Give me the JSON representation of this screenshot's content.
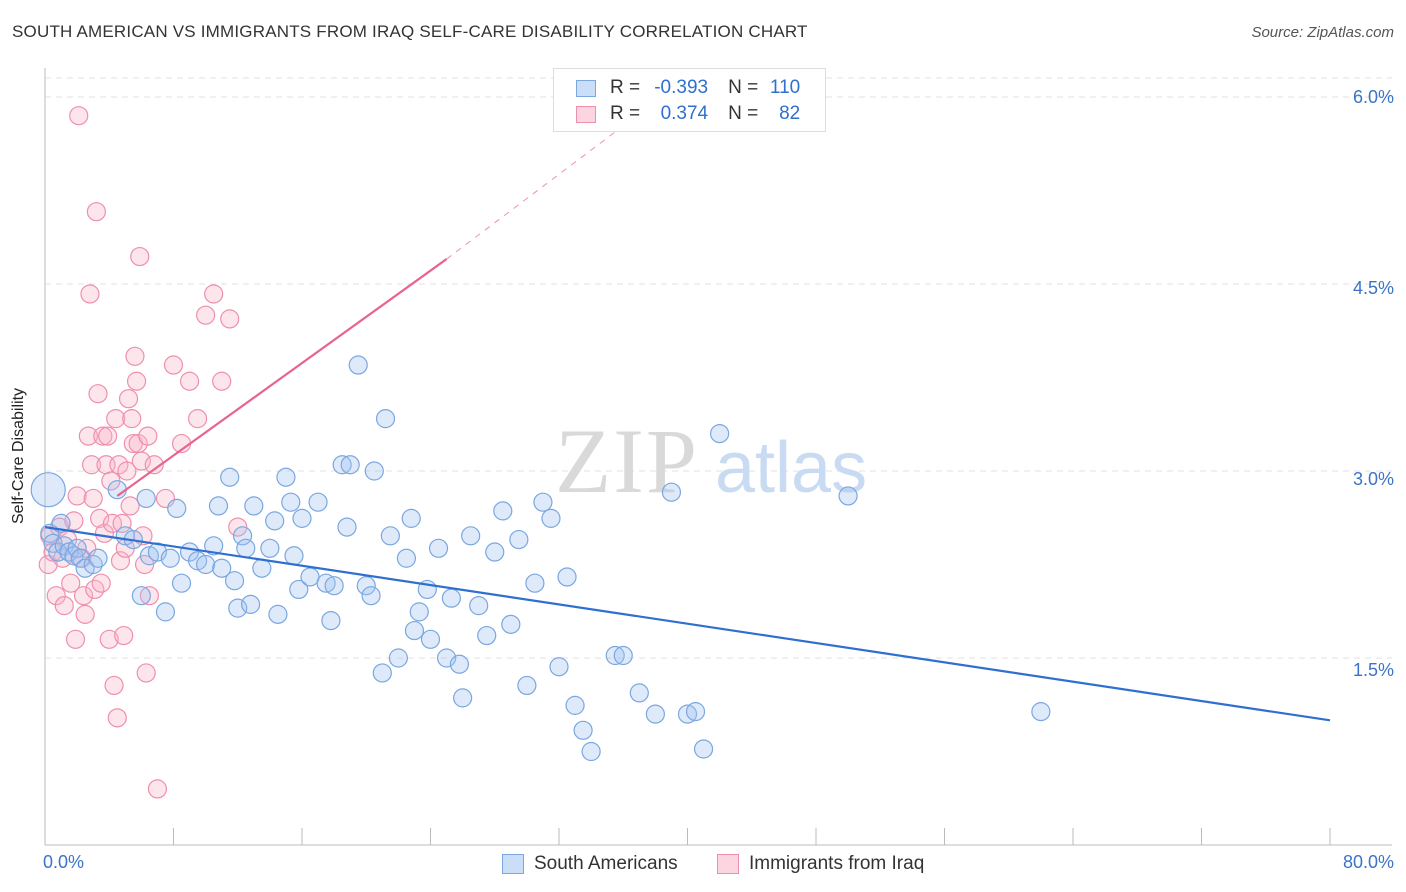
{
  "title": "SOUTH AMERICAN VS IMMIGRANTS FROM IRAQ SELF-CARE DISABILITY CORRELATION CHART",
  "source": "Source: ZipAtlas.com",
  "watermark": {
    "zip": "ZIP",
    "atlas": "atlas"
  },
  "legend": {
    "rows": [
      {
        "r_label": "R =",
        "r_value": "-0.393",
        "n_label": "N =",
        "n_value": "110"
      },
      {
        "r_label": "R =",
        "r_value": "0.374",
        "n_label": "N =",
        "n_value": "82"
      }
    ]
  },
  "colors": {
    "blue": "#7aa7e0",
    "blue_fill": "rgba(160,195,240,0.35)",
    "blue_line": "#2f6fd0",
    "pink": "#ef8fae",
    "pink_fill": "rgba(248,180,200,0.35)",
    "pink_line": "#e8648f",
    "grid": "#e2e2e2",
    "tick_text": "#3b73c9"
  },
  "chart_data": {
    "type": "scatter",
    "title": "SOUTH AMERICAN VS IMMIGRANTS FROM IRAQ SELF-CARE DISABILITY CORRELATION CHART",
    "xlabel": "",
    "ylabel": "Self-Care Disability",
    "xlim": [
      0,
      80
    ],
    "ylim": [
      0,
      6.3
    ],
    "x_tick_labels": [
      "0.0%",
      "80.0%"
    ],
    "y_ticks": [
      1.5,
      3.0,
      4.5,
      6.0
    ],
    "y_tick_labels": [
      "1.5%",
      "3.0%",
      "4.5%",
      "6.0%"
    ],
    "grid": true,
    "legend_position": "bottom",
    "series": [
      {
        "name": "South Americans",
        "color": "#7aa7e0",
        "trend": {
          "x": [
            0,
            80
          ],
          "y": [
            2.55,
            1.0
          ]
        },
        "points": [
          [
            0.2,
            2.85
          ],
          [
            0.3,
            2.5
          ],
          [
            0.5,
            2.42
          ],
          [
            0.8,
            2.35
          ],
          [
            1,
            2.58
          ],
          [
            1.2,
            2.4
          ],
          [
            1.5,
            2.35
          ],
          [
            1.8,
            2.32
          ],
          [
            2,
            2.38
          ],
          [
            2.2,
            2.3
          ],
          [
            2.5,
            2.22
          ],
          [
            3,
            2.25
          ],
          [
            3.3,
            2.3
          ],
          [
            4.5,
            2.85
          ],
          [
            5,
            2.48
          ],
          [
            5.5,
            2.45
          ],
          [
            6,
            2.0
          ],
          [
            6.3,
            2.78
          ],
          [
            6.5,
            2.32
          ],
          [
            7,
            2.35
          ],
          [
            7.5,
            1.87
          ],
          [
            7.8,
            2.3
          ],
          [
            8.2,
            2.7
          ],
          [
            8.5,
            2.1
          ],
          [
            9,
            2.35
          ],
          [
            9.5,
            2.28
          ],
          [
            10,
            2.25
          ],
          [
            10.5,
            2.4
          ],
          [
            10.8,
            2.72
          ],
          [
            11,
            2.22
          ],
          [
            11.5,
            2.95
          ],
          [
            11.8,
            2.12
          ],
          [
            12,
            1.9
          ],
          [
            12.3,
            2.48
          ],
          [
            12.5,
            2.38
          ],
          [
            12.8,
            1.93
          ],
          [
            13,
            2.72
          ],
          [
            13.5,
            2.22
          ],
          [
            14,
            2.38
          ],
          [
            14.3,
            2.6
          ],
          [
            14.5,
            1.85
          ],
          [
            15,
            2.95
          ],
          [
            15.3,
            2.75
          ],
          [
            15.5,
            2.32
          ],
          [
            15.8,
            2.05
          ],
          [
            16,
            2.62
          ],
          [
            16.5,
            2.15
          ],
          [
            17,
            2.75
          ],
          [
            17.5,
            2.1
          ],
          [
            17.8,
            1.8
          ],
          [
            18,
            2.08
          ],
          [
            18.5,
            3.05
          ],
          [
            18.8,
            2.55
          ],
          [
            19,
            3.05
          ],
          [
            19.5,
            3.85
          ],
          [
            20,
            2.08
          ],
          [
            20.3,
            2.0
          ],
          [
            20.5,
            3.0
          ],
          [
            21,
            1.38
          ],
          [
            21.2,
            3.42
          ],
          [
            21.5,
            2.48
          ],
          [
            22,
            1.5
          ],
          [
            22.5,
            2.3
          ],
          [
            22.8,
            2.62
          ],
          [
            23,
            1.72
          ],
          [
            23.3,
            1.87
          ],
          [
            23.8,
            2.05
          ],
          [
            24,
            1.65
          ],
          [
            24.5,
            2.38
          ],
          [
            25,
            1.5
          ],
          [
            25.3,
            1.98
          ],
          [
            25.8,
            1.45
          ],
          [
            26,
            1.18
          ],
          [
            26.5,
            2.48
          ],
          [
            27,
            1.92
          ],
          [
            27.5,
            1.68
          ],
          [
            28,
            2.35
          ],
          [
            28.5,
            2.68
          ],
          [
            29,
            1.77
          ],
          [
            29.5,
            2.45
          ],
          [
            30,
            1.28
          ],
          [
            30.5,
            2.1
          ],
          [
            31,
            2.75
          ],
          [
            31.5,
            2.62
          ],
          [
            32,
            1.43
          ],
          [
            32.5,
            2.15
          ],
          [
            33,
            1.12
          ],
          [
            33.5,
            0.92
          ],
          [
            34,
            0.75
          ],
          [
            35.5,
            1.52
          ],
          [
            36,
            1.52
          ],
          [
            37,
            1.22
          ],
          [
            38,
            1.05
          ],
          [
            39,
            2.83
          ],
          [
            40,
            1.05
          ],
          [
            40.5,
            1.07
          ],
          [
            41,
            0.77
          ],
          [
            42,
            3.3
          ],
          [
            50,
            2.8
          ],
          [
            62,
            1.07
          ]
        ]
      },
      {
        "name": "Immigrants from Iraq",
        "color": "#ef8fae",
        "trend": {
          "x": [
            4.5,
            25
          ],
          "y": [
            2.8,
            4.7
          ],
          "extended_to": [
            35.5,
            5.72
          ]
        },
        "points": [
          [
            0.2,
            2.25
          ],
          [
            0.3,
            2.48
          ],
          [
            0.5,
            2.35
          ],
          [
            0.7,
            2.0
          ],
          [
            0.9,
            2.55
          ],
          [
            1.1,
            2.3
          ],
          [
            1.2,
            1.92
          ],
          [
            1.4,
            2.45
          ],
          [
            1.6,
            2.1
          ],
          [
            1.8,
            2.6
          ],
          [
            1.9,
            1.65
          ],
          [
            2,
            2.8
          ],
          [
            2.1,
            5.85
          ],
          [
            2.3,
            2.3
          ],
          [
            2.4,
            2.0
          ],
          [
            2.5,
            1.85
          ],
          [
            2.6,
            2.38
          ],
          [
            2.7,
            3.28
          ],
          [
            2.8,
            4.42
          ],
          [
            2.9,
            3.05
          ],
          [
            3.0,
            2.78
          ],
          [
            3.1,
            2.05
          ],
          [
            3.2,
            5.08
          ],
          [
            3.3,
            3.62
          ],
          [
            3.4,
            2.62
          ],
          [
            3.5,
            2.1
          ],
          [
            3.6,
            3.28
          ],
          [
            3.7,
            2.5
          ],
          [
            3.8,
            3.05
          ],
          [
            3.9,
            3.28
          ],
          [
            4.0,
            1.65
          ],
          [
            4.1,
            2.92
          ],
          [
            4.2,
            2.58
          ],
          [
            4.3,
            1.28
          ],
          [
            4.4,
            3.42
          ],
          [
            4.5,
            1.02
          ],
          [
            4.6,
            3.05
          ],
          [
            4.7,
            2.28
          ],
          [
            4.8,
            2.58
          ],
          [
            4.9,
            1.68
          ],
          [
            5.0,
            2.38
          ],
          [
            5.1,
            3.0
          ],
          [
            5.2,
            3.58
          ],
          [
            5.3,
            2.72
          ],
          [
            5.4,
            3.42
          ],
          [
            5.5,
            3.22
          ],
          [
            5.6,
            3.92
          ],
          [
            5.7,
            3.72
          ],
          [
            5.8,
            3.22
          ],
          [
            5.9,
            4.72
          ],
          [
            6.0,
            3.08
          ],
          [
            6.1,
            2.48
          ],
          [
            6.2,
            2.25
          ],
          [
            6.3,
            1.38
          ],
          [
            6.4,
            3.28
          ],
          [
            6.5,
            2.0
          ],
          [
            6.8,
            3.05
          ],
          [
            7,
            0.45
          ],
          [
            7.5,
            2.78
          ],
          [
            8,
            3.85
          ],
          [
            8.5,
            3.22
          ],
          [
            9,
            3.72
          ],
          [
            9.5,
            3.42
          ],
          [
            10,
            4.25
          ],
          [
            10.5,
            4.42
          ],
          [
            11,
            3.72
          ],
          [
            11.5,
            4.22
          ],
          [
            12,
            2.55
          ]
        ]
      }
    ]
  },
  "bottom_legend": {
    "blue_label": "South Americans",
    "pink_label": "Immigrants from Iraq"
  }
}
